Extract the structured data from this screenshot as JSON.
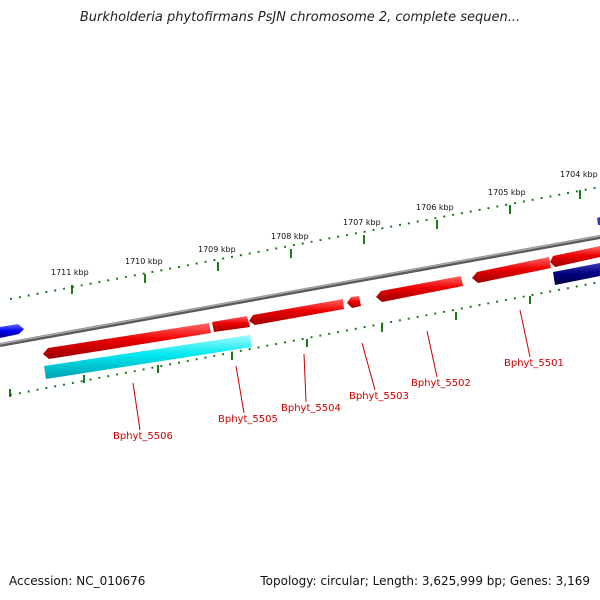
{
  "title": "Burkholderia phytofirmans PsJN chromosome 2, complete sequen...",
  "footer": {
    "accession": "Accession: NC_010676",
    "topology": "Topology: circular; Length: 3,625,999 bp; Genes: 3,169"
  },
  "scale_labels": [
    "1711 kbp",
    "1710 kbp",
    "1709 kbp",
    "1708 kbp",
    "1707 kbp",
    "1706 kbp",
    "1705 kbp",
    "1704 kbp"
  ],
  "gene_labels": [
    "Bphyt_5506",
    "Bphyt_5505",
    "Bphyt_5504",
    "Bphyt_5503",
    "Bphyt_5502",
    "Bphyt_5501"
  ],
  "colors": {
    "forward_gene": "#ee0000",
    "reverse_gene": "#00e0e8",
    "navy_gene": "#000080",
    "blue_gene": "#0000ee",
    "backbone": "#808080",
    "tick": "#1a7a1a",
    "label": "#cc0000"
  }
}
